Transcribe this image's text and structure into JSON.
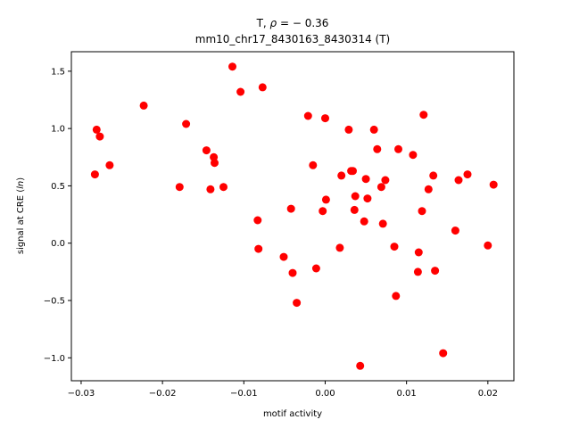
{
  "chart_data": {
    "type": "scatter",
    "title_line1_prefix": "T, ",
    "title_line1_rho": "ρ",
    "title_line1_suffix": " = − 0.36",
    "title_line2": "mm10_chr17_8430163_8430314 (T)",
    "xlabel": "motif activity",
    "ylabel_prefix": "signal at CRE (",
    "ylabel_italic": "ln",
    "ylabel_suffix": ")",
    "xlim": [
      -0.0312,
      0.0232
    ],
    "ylim": [
      -1.2,
      1.67
    ],
    "xticks": [
      -0.03,
      -0.02,
      -0.01,
      0.0,
      0.01,
      0.02
    ],
    "xtick_labels": [
      "−0.03",
      "−0.02",
      "−0.01",
      "0.00",
      "0.01",
      "0.02"
    ],
    "yticks": [
      -1.0,
      -0.5,
      0.0,
      0.5,
      1.0,
      1.5
    ],
    "ytick_labels": [
      "−1.0",
      "−0.5",
      "0.0",
      "0.5",
      "1.0",
      "1.5"
    ],
    "grid": false,
    "legend": "none",
    "marker_color": "#ff0000",
    "points": [
      {
        "x": -0.0281,
        "y": 0.99
      },
      {
        "x": -0.0277,
        "y": 0.93
      },
      {
        "x": -0.0283,
        "y": 0.6
      },
      {
        "x": -0.0265,
        "y": 0.68
      },
      {
        "x": -0.0223,
        "y": 1.2
      },
      {
        "x": -0.0179,
        "y": 0.49
      },
      {
        "x": -0.0171,
        "y": 1.04
      },
      {
        "x": -0.0146,
        "y": 0.81
      },
      {
        "x": -0.0141,
        "y": 0.47
      },
      {
        "x": -0.0137,
        "y": 0.75
      },
      {
        "x": -0.0136,
        "y": 0.7
      },
      {
        "x": -0.0125,
        "y": 0.49
      },
      {
        "x": -0.0114,
        "y": 1.54
      },
      {
        "x": -0.0104,
        "y": 1.32
      },
      {
        "x": -0.0083,
        "y": 0.2
      },
      {
        "x": -0.0082,
        "y": -0.05
      },
      {
        "x": -0.0077,
        "y": 1.36
      },
      {
        "x": -0.0051,
        "y": -0.12
      },
      {
        "x": -0.0042,
        "y": 0.3
      },
      {
        "x": -0.004,
        "y": -0.26
      },
      {
        "x": -0.0035,
        "y": -0.52
      },
      {
        "x": -0.0021,
        "y": 1.11
      },
      {
        "x": -0.0015,
        "y": 0.68
      },
      {
        "x": -0.0011,
        "y": -0.22
      },
      {
        "x": -0.0003,
        "y": 0.28
      },
      {
        "x": 0.0,
        "y": 1.09
      },
      {
        "x": 0.0001,
        "y": 0.38
      },
      {
        "x": 0.0018,
        "y": -0.04
      },
      {
        "x": 0.002,
        "y": 0.59
      },
      {
        "x": 0.0029,
        "y": 0.99
      },
      {
        "x": 0.0032,
        "y": 0.63
      },
      {
        "x": 0.0034,
        "y": 0.63
      },
      {
        "x": 0.0036,
        "y": 0.29
      },
      {
        "x": 0.0037,
        "y": 0.41
      },
      {
        "x": 0.0043,
        "y": -1.07
      },
      {
        "x": 0.0048,
        "y": 0.19
      },
      {
        "x": 0.005,
        "y": 0.56
      },
      {
        "x": 0.0052,
        "y": 0.39
      },
      {
        "x": 0.006,
        "y": 0.99
      },
      {
        "x": 0.0064,
        "y": 0.82
      },
      {
        "x": 0.0069,
        "y": 0.49
      },
      {
        "x": 0.0071,
        "y": 0.17
      },
      {
        "x": 0.0074,
        "y": 0.55
      },
      {
        "x": 0.0085,
        "y": -0.03
      },
      {
        "x": 0.0087,
        "y": -0.46
      },
      {
        "x": 0.009,
        "y": 0.82
      },
      {
        "x": 0.0108,
        "y": 0.77
      },
      {
        "x": 0.0114,
        "y": -0.25
      },
      {
        "x": 0.0115,
        "y": -0.08
      },
      {
        "x": 0.0119,
        "y": 0.28
      },
      {
        "x": 0.0121,
        "y": 1.12
      },
      {
        "x": 0.0127,
        "y": 0.47
      },
      {
        "x": 0.0133,
        "y": 0.59
      },
      {
        "x": 0.0135,
        "y": -0.24
      },
      {
        "x": 0.0145,
        "y": -0.96
      },
      {
        "x": 0.016,
        "y": 0.11
      },
      {
        "x": 0.0164,
        "y": 0.55
      },
      {
        "x": 0.0175,
        "y": 0.6
      },
      {
        "x": 0.02,
        "y": -0.02
      },
      {
        "x": 0.0207,
        "y": 0.51
      }
    ]
  }
}
